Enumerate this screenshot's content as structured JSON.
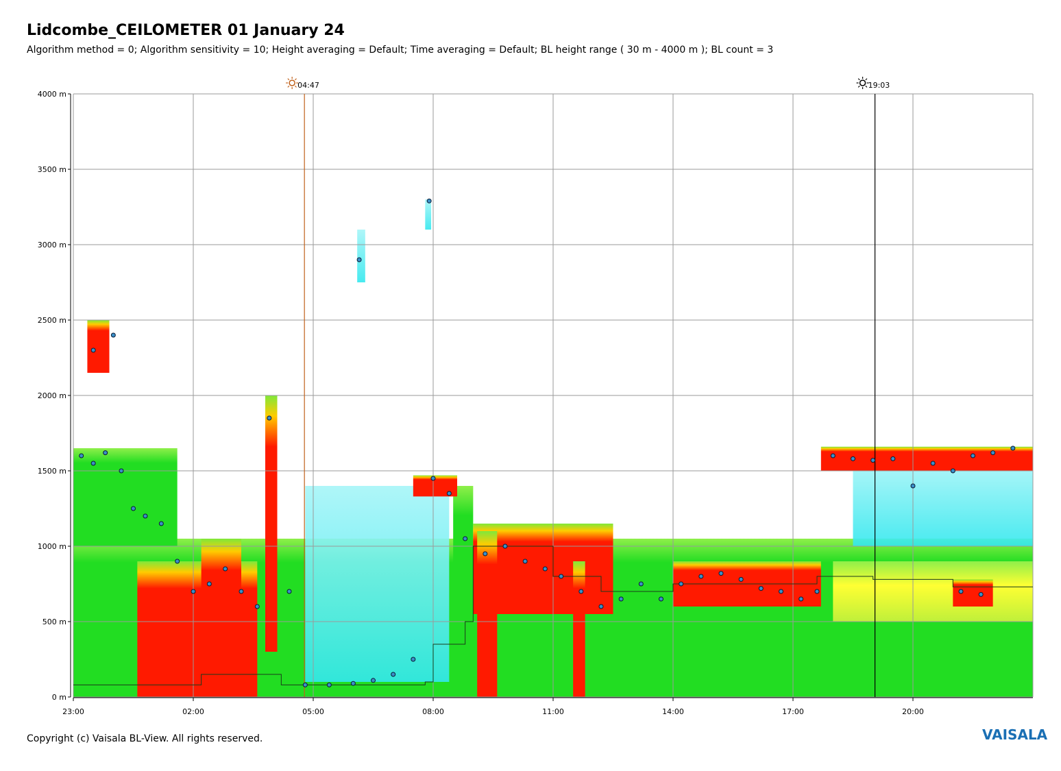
{
  "header": {
    "title": "Lidcombe_CEILOMETER 01 January 24",
    "subtitle": "Algorithm method = 0; Algorithm sensitivity = 10; Height averaging = Default; Time averaging = Default; BL height range ( 30 m - 4000 m ); BL count = 3"
  },
  "footer": {
    "copyright": "Copyright (c) Vaisala BL-View. All rights reserved.",
    "brand": "VAISALA"
  },
  "colors": {
    "grid": "#9a9a9a",
    "sunrise": "#c0601a",
    "sunset": "#000000",
    "backscatter_low": "#22dd22",
    "backscatter_mid": "#ffff00",
    "backscatter_high": "#ff1a00",
    "backscatter_faint": "#33e8ee",
    "bl_marker": "#3a8fc8"
  },
  "chart_data": {
    "type": "heatmap",
    "x_start_hour": 23,
    "x_end_hour": 47,
    "xticks": [
      {
        "hour": 23,
        "label": "23:00"
      },
      {
        "hour": 26,
        "label": "02:00"
      },
      {
        "hour": 29,
        "label": "05:00"
      },
      {
        "hour": 32,
        "label": "08:00"
      },
      {
        "hour": 35,
        "label": "11:00"
      },
      {
        "hour": 38,
        "label": "14:00"
      },
      {
        "hour": 41,
        "label": "17:00"
      },
      {
        "hour": 44,
        "label": "20:00"
      }
    ],
    "ylim": [
      0,
      4000
    ],
    "yticks": [
      {
        "value": 0,
        "label": "0 m"
      },
      {
        "value": 500,
        "label": "500 m"
      },
      {
        "value": 1000,
        "label": "1000 m"
      },
      {
        "value": 1500,
        "label": "1500 m"
      },
      {
        "value": 2000,
        "label": "2000 m"
      },
      {
        "value": 2500,
        "label": "2500 m"
      },
      {
        "value": 3000,
        "label": "3000 m"
      },
      {
        "value": 3500,
        "label": "3500 m"
      },
      {
        "value": 4000,
        "label": "4000 m"
      }
    ],
    "events": [
      {
        "name": "sunrise",
        "hour": 28.78,
        "label": "04:47"
      },
      {
        "name": "sunset",
        "hour": 43.05,
        "label": "19:03"
      }
    ],
    "grid": true,
    "layers": [
      {
        "kind": "low",
        "x0": 23,
        "x1": 47,
        "y0": 0,
        "y1": 1050
      },
      {
        "kind": "low",
        "x0": 23,
        "x1": 25.6,
        "y0": 1000,
        "y1": 1650
      },
      {
        "kind": "high",
        "x0": 24.6,
        "x1": 27.6,
        "y0": 0,
        "y1": 900
      },
      {
        "kind": "high",
        "x0": 26.2,
        "x1": 27.2,
        "y0": 0,
        "y1": 1050
      },
      {
        "kind": "high",
        "x0": 27.8,
        "x1": 28.1,
        "y0": 300,
        "y1": 2000
      },
      {
        "kind": "faint",
        "x0": 28.8,
        "x1": 32.4,
        "y0": 100,
        "y1": 1400
      },
      {
        "kind": "low",
        "x0": 32.5,
        "x1": 33.0,
        "y0": 100,
        "y1": 1400
      },
      {
        "kind": "high",
        "x0": 33.0,
        "x1": 36.5,
        "y0": 550,
        "y1": 1150
      },
      {
        "kind": "high",
        "x0": 33.1,
        "x1": 33.6,
        "y0": 0,
        "y1": 1100
      },
      {
        "kind": "high",
        "x0": 35.5,
        "x1": 35.8,
        "y0": 0,
        "y1": 900
      },
      {
        "kind": "high",
        "x0": 31.5,
        "x1": 32.6,
        "y0": 1330,
        "y1": 1470
      },
      {
        "kind": "high",
        "x0": 38.0,
        "x1": 41.7,
        "y0": 600,
        "y1": 900
      },
      {
        "kind": "faint",
        "x0": 42.5,
        "x1": 47,
        "y0": 1000,
        "y1": 1550
      },
      {
        "kind": "high",
        "x0": 41.7,
        "x1": 47,
        "y0": 1500,
        "y1": 1660
      },
      {
        "kind": "mid",
        "x0": 42.0,
        "x1": 47,
        "y0": 500,
        "y1": 900
      },
      {
        "kind": "high",
        "x0": 45.0,
        "x1": 46.0,
        "y0": 600,
        "y1": 780
      },
      {
        "kind": "high",
        "x0": 23.35,
        "x1": 23.9,
        "y0": 2150,
        "y1": 2500
      },
      {
        "kind": "faint",
        "x0": 30.1,
        "x1": 30.3,
        "y0": 2750,
        "y1": 3100
      },
      {
        "kind": "faint",
        "x0": 31.8,
        "x1": 31.95,
        "y0": 3100,
        "y1": 3300
      }
    ],
    "bl_points": [
      [
        23.2,
        1600
      ],
      [
        23.5,
        1550
      ],
      [
        23.8,
        1620
      ],
      [
        24.2,
        1500
      ],
      [
        24.5,
        1250
      ],
      [
        24.8,
        1200
      ],
      [
        25.2,
        1150
      ],
      [
        25.6,
        900
      ],
      [
        26.0,
        700
      ],
      [
        26.4,
        750
      ],
      [
        26.8,
        850
      ],
      [
        27.2,
        700
      ],
      [
        27.6,
        600
      ],
      [
        27.9,
        1850
      ],
      [
        28.4,
        700
      ],
      [
        28.8,
        80
      ],
      [
        29.4,
        80
      ],
      [
        30.0,
        90
      ],
      [
        30.5,
        110
      ],
      [
        31.0,
        150
      ],
      [
        31.5,
        250
      ],
      [
        32.0,
        1450
      ],
      [
        32.4,
        1350
      ],
      [
        32.8,
        1050
      ],
      [
        33.3,
        950
      ],
      [
        33.8,
        1000
      ],
      [
        34.3,
        900
      ],
      [
        34.8,
        850
      ],
      [
        35.2,
        800
      ],
      [
        35.7,
        700
      ],
      [
        36.2,
        600
      ],
      [
        36.7,
        650
      ],
      [
        37.2,
        750
      ],
      [
        37.7,
        650
      ],
      [
        38.2,
        750
      ],
      [
        38.7,
        800
      ],
      [
        39.2,
        820
      ],
      [
        39.7,
        780
      ],
      [
        40.2,
        720
      ],
      [
        40.7,
        700
      ],
      [
        41.2,
        650
      ],
      [
        41.6,
        700
      ],
      [
        42.0,
        1600
      ],
      [
        42.5,
        1580
      ],
      [
        43.0,
        1570
      ],
      [
        43.5,
        1580
      ],
      [
        44.0,
        1400
      ],
      [
        44.5,
        1550
      ],
      [
        45.0,
        1500
      ],
      [
        45.5,
        1600
      ],
      [
        46.0,
        1620
      ],
      [
        46.5,
        1650
      ],
      [
        45.2,
        700
      ],
      [
        45.7,
        680
      ],
      [
        23.5,
        2300
      ],
      [
        24.0,
        2400
      ],
      [
        30.15,
        2900
      ],
      [
        31.9,
        3290
      ]
    ],
    "bl_step_line": [
      [
        23,
        80
      ],
      [
        26.2,
        150
      ],
      [
        28.2,
        80
      ],
      [
        31.8,
        100
      ],
      [
        32.0,
        350
      ],
      [
        32.8,
        500
      ],
      [
        33.0,
        1000
      ],
      [
        35.0,
        800
      ],
      [
        36.2,
        700
      ],
      [
        38.0,
        750
      ],
      [
        41.6,
        800
      ],
      [
        43.0,
        780
      ],
      [
        45.0,
        730
      ],
      [
        47,
        730
      ]
    ]
  }
}
